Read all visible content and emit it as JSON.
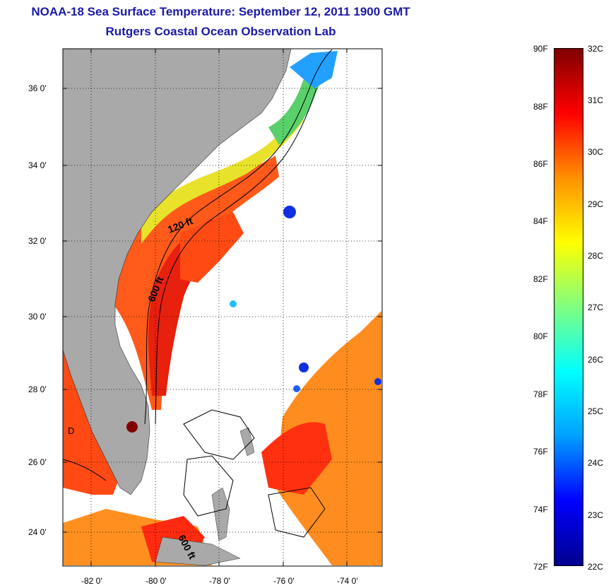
{
  "title": "NOAA-18 Sea Surface Temperature:  September 12, 2011 1900 GMT",
  "subtitle": "Rutgers Coastal Ocean Observation Lab",
  "map": {
    "lon_range": [
      -83,
      -73
    ],
    "lat_range": [
      23,
      37
    ],
    "x_ticks": [
      "-82 0'",
      "-80 0'",
      "-78 0'",
      "-76 0'",
      "-74 0'"
    ],
    "y_ticks": [
      "36 0'",
      "34 0'",
      "32 0'",
      "30 0'",
      "28 0'",
      "26 0'",
      "24 0'"
    ],
    "contour_labels": [
      "120 ft",
      "600 ft",
      "600 ft"
    ],
    "land_label": "D",
    "gridlines": "dotted"
  },
  "colorbar": {
    "fahrenheit_labels": [
      "90F",
      "88F",
      "86F",
      "84F",
      "82F",
      "80F",
      "78F",
      "76F",
      "74F",
      "72F"
    ],
    "celsius_labels": [
      "32C",
      "31C",
      "30C",
      "29C",
      "28C",
      "27C",
      "26C",
      "25C",
      "24C",
      "23C",
      "22C"
    ],
    "colormap": "jet",
    "colors": [
      "#00008f",
      "#0000ff",
      "#00a0ff",
      "#00ffff",
      "#80ff80",
      "#ffff00",
      "#ff9000",
      "#ff0000",
      "#800000"
    ]
  }
}
